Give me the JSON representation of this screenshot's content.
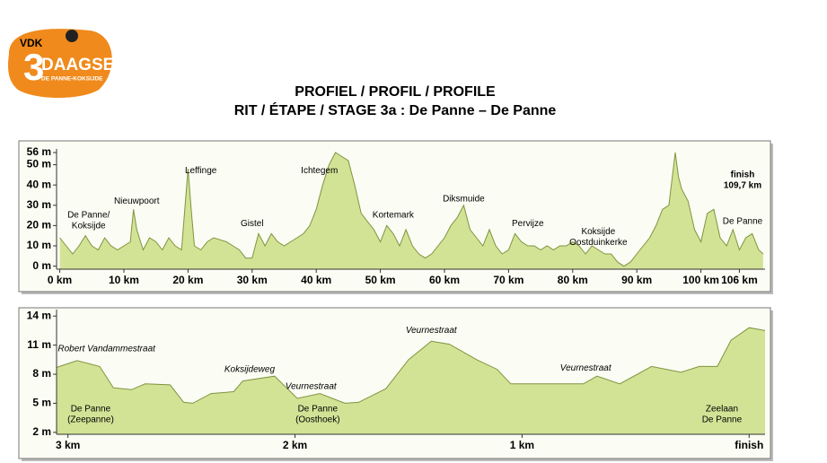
{
  "logo": {
    "brand": "VDK",
    "number": "3",
    "name": "DAAGSE",
    "place": "DE PANNE-KOKSIJDE"
  },
  "header": {
    "title": "PROFIEL / PROFIL / PROFILE",
    "subtitle": "RIT / ÉTAPE / STAGE 3a : De Panne – De Panne"
  },
  "chart_data": [
    {
      "type": "area",
      "color": "#d3e396",
      "line_color": "#7f9440",
      "x": [
        0,
        1,
        2,
        3,
        4,
        5,
        6,
        7,
        8,
        9,
        10,
        11,
        11.5,
        12,
        13,
        14,
        15,
        16,
        17,
        18,
        19,
        20,
        20.5,
        21,
        22,
        23,
        24,
        25,
        26,
        27,
        28,
        29,
        30,
        31,
        32,
        33,
        34,
        35,
        36,
        37,
        38,
        39,
        40,
        41,
        42,
        43,
        44,
        45,
        46,
        47,
        48,
        49,
        50,
        51,
        52,
        53,
        54,
        55,
        56,
        57,
        58,
        59,
        60,
        61,
        62,
        63,
        64,
        65,
        66,
        67,
        68,
        69,
        70,
        71,
        72,
        73,
        74,
        75,
        76,
        77,
        78,
        79,
        80,
        81,
        82,
        83,
        84,
        85,
        86,
        87,
        88,
        89,
        90,
        91,
        92,
        93,
        94,
        95,
        96,
        96.5,
        97,
        98,
        99,
        100,
        101,
        102,
        103,
        104,
        105,
        106,
        107,
        108,
        109,
        109.7
      ],
      "values": [
        14,
        10,
        6,
        10,
        15,
        10,
        8,
        14,
        10,
        8,
        10,
        12,
        28,
        18,
        8,
        14,
        12,
        8,
        14,
        10,
        8,
        48,
        28,
        10,
        8,
        12,
        14,
        13,
        12,
        10,
        8,
        4,
        4,
        16,
        10,
        16,
        12,
        10,
        12,
        14,
        16,
        20,
        28,
        40,
        50,
        56,
        54,
        52,
        40,
        26,
        22,
        18,
        12,
        20,
        16,
        10,
        18,
        10,
        6,
        4,
        6,
        10,
        14,
        20,
        24,
        30,
        18,
        14,
        10,
        18,
        10,
        6,
        8,
        16,
        12,
        10,
        10,
        8,
        10,
        8,
        10,
        10,
        12,
        10,
        6,
        10,
        8,
        6,
        6,
        2,
        0,
        2,
        6,
        10,
        14,
        20,
        28,
        30,
        56,
        44,
        38,
        32,
        18,
        12,
        26,
        28,
        14,
        10,
        18,
        8,
        14,
        16,
        8,
        6
      ],
      "xlim": [
        -0.5,
        110
      ],
      "ylim": [
        -1.5,
        56
      ],
      "xticks": [
        {
          "value": 0,
          "label": "0 km"
        },
        {
          "value": 10,
          "label": "10 km"
        },
        {
          "value": 20,
          "label": "20 km"
        },
        {
          "value": 30,
          "label": "30 km"
        },
        {
          "value": 40,
          "label": "40 km"
        },
        {
          "value": 50,
          "label": "50 km"
        },
        {
          "value": 60,
          "label": "60 km"
        },
        {
          "value": 70,
          "label": "70 km"
        },
        {
          "value": 80,
          "label": "80 km"
        },
        {
          "value": 90,
          "label": "90 km"
        },
        {
          "value": 100,
          "label": "100 km"
        },
        {
          "value": 106,
          "label": "106 km"
        }
      ],
      "yticks": [
        {
          "value": 0,
          "label": "0 m"
        },
        {
          "value": 10,
          "label": "10 m"
        },
        {
          "value": 20,
          "label": "20 m"
        },
        {
          "value": 30,
          "label": "30 m"
        },
        {
          "value": 40,
          "label": "40 m"
        },
        {
          "value": 50,
          "label": "50 m"
        },
        {
          "value": 56,
          "label": "56 m"
        }
      ],
      "annotations": [
        {
          "lines": [
            "De Panne/",
            "Koksijde"
          ],
          "x": 4.5,
          "y": 25
        },
        {
          "lines": [
            "Nieuwpoort"
          ],
          "x": 12,
          "y": 32
        },
        {
          "lines": [
            "Leffinge"
          ],
          "x": 22,
          "y": 47
        },
        {
          "lines": [
            "Gistel"
          ],
          "x": 30,
          "y": 21
        },
        {
          "lines": [
            "Ichtegem"
          ],
          "x": 40.5,
          "y": 47
        },
        {
          "lines": [
            "Kortemark"
          ],
          "x": 52,
          "y": 25
        },
        {
          "lines": [
            "Diksmuide"
          ],
          "x": 63,
          "y": 33
        },
        {
          "lines": [
            "Pervijze"
          ],
          "x": 73,
          "y": 21
        },
        {
          "lines": [
            "Koksijde",
            "Oostduinkerke"
          ],
          "x": 84,
          "y": 17
        },
        {
          "lines": [
            "finish",
            "109,7 km"
          ],
          "x": 106.5,
          "y": 45,
          "bold": true
        },
        {
          "lines": [
            "De Panne"
          ],
          "x": 106.5,
          "y": 22
        }
      ]
    },
    {
      "type": "area",
      "color": "#d3e396",
      "line_color": "#7f9440",
      "x": [
        3.05,
        2.96,
        2.86,
        2.8,
        2.72,
        2.66,
        2.55,
        2.49,
        2.45,
        2.37,
        2.27,
        2.23,
        2.09,
        1.99,
        1.89,
        1.78,
        1.72,
        1.6,
        1.5,
        1.4,
        1.32,
        1.2,
        1.11,
        1.05,
        0.73,
        0.67,
        0.57,
        0.43,
        0.3,
        0.22,
        0.14,
        0.08,
        0,
        -0.07
      ],
      "values": [
        8.7,
        9.4,
        8.8,
        6.6,
        6.4,
        7.0,
        6.9,
        5.1,
        5.0,
        6.0,
        6.2,
        7.3,
        7.8,
        5.5,
        6.0,
        5.0,
        5.1,
        6.5,
        9.5,
        11.4,
        11.1,
        9.5,
        8.5,
        7.0,
        7.0,
        7.8,
        7.0,
        8.8,
        8.2,
        8.8,
        8.8,
        11.5,
        12.8,
        12.5
      ],
      "xlim": [
        3.05,
        -0.07
      ],
      "ylim": [
        1.8,
        14.3
      ],
      "xticks": [
        {
          "value": 3,
          "label": "3 km"
        },
        {
          "value": 2,
          "label": "2 km"
        },
        {
          "value": 1,
          "label": "1 km"
        },
        {
          "value": 0,
          "label": "finish"
        }
      ],
      "yticks": [
        {
          "value": 2,
          "label": "2 m"
        },
        {
          "value": 5,
          "label": "5 m"
        },
        {
          "value": 8,
          "label": "8 m"
        },
        {
          "value": 11,
          "label": "11 m"
        },
        {
          "value": 14,
          "label": "14 m"
        }
      ],
      "annotations": [
        {
          "lines": [
            "Robert Vandammestraat"
          ],
          "x": 2.83,
          "y": 10.6,
          "italic": true
        },
        {
          "lines": [
            "Koksijdeweg"
          ],
          "x": 2.2,
          "y": 8.5,
          "italic": true
        },
        {
          "lines": [
            "Veurnestraat"
          ],
          "x": 1.93,
          "y": 6.7,
          "italic": true
        },
        {
          "lines": [
            "Veurnestraat"
          ],
          "x": 1.4,
          "y": 12.5,
          "italic": true
        },
        {
          "lines": [
            "Veurnestraat"
          ],
          "x": 0.72,
          "y": 8.6,
          "italic": true
        },
        {
          "lines": [
            "De Panne",
            "(Zeepanne)"
          ],
          "x": 2.9,
          "y": 4.4
        },
        {
          "lines": [
            "De Panne",
            "(Oosthoek)"
          ],
          "x": 1.9,
          "y": 4.4
        },
        {
          "lines": [
            "Zeelaan",
            "De Panne"
          ],
          "x": 0.12,
          "y": 4.4
        }
      ]
    }
  ]
}
